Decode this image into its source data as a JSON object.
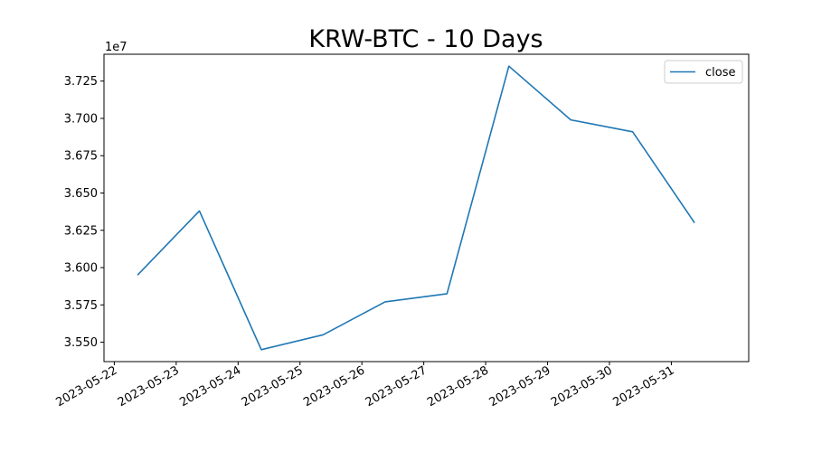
{
  "chart_data": {
    "type": "line",
    "title": "KRW-BTC - 10 Days",
    "xlabel": "",
    "ylabel": "",
    "y_offset_label": "1e7",
    "x_tick_labels": [
      "2023-05-22",
      "2023-05-23",
      "2023-05-24",
      "2023-05-25",
      "2023-05-26",
      "2023-05-27",
      "2023-05-28",
      "2023-05-29",
      "2023-05-30",
      "2023-05-31"
    ],
    "y_ticks": [
      3.55,
      3.575,
      3.6,
      3.625,
      3.65,
      3.675,
      3.7,
      3.725
    ],
    "y_tick_labels": [
      "3.550",
      "3.575",
      "3.600",
      "3.625",
      "3.650",
      "3.675",
      "3.700",
      "3.725"
    ],
    "ylim": [
      3.537,
      3.743
    ],
    "xlim": [
      "2023-05-21T20:00",
      "2023-06-01T06:00"
    ],
    "legend": {
      "position": "upper right",
      "entries": [
        "close"
      ]
    },
    "grid": false,
    "series": [
      {
        "name": "close",
        "color": "#1f77b4",
        "x": [
          "2023-05-22T09:00",
          "2023-05-23T09:00",
          "2023-05-24T09:00",
          "2023-05-25T09:00",
          "2023-05-26T09:00",
          "2023-05-27T09:00",
          "2023-05-28T09:00",
          "2023-05-29T09:00",
          "2023-05-30T09:00",
          "2023-05-31T09:00"
        ],
        "y": [
          3.595,
          3.638,
          3.545,
          3.555,
          3.577,
          3.5825,
          3.735,
          3.699,
          3.691,
          3.63
        ]
      }
    ]
  }
}
